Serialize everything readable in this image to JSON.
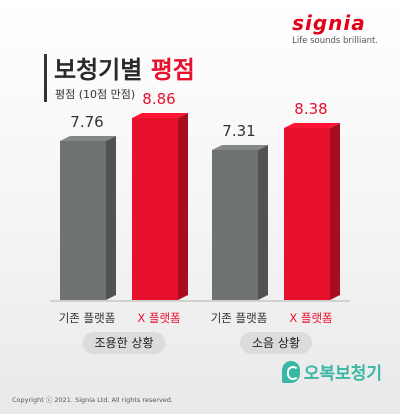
{
  "brand": {
    "logo_text": "signia",
    "tagline": "Life sounds brilliant."
  },
  "header": {
    "title_main": "보청기별 ",
    "title_accent": "평점",
    "subtitle": "평점 (10점 만점)"
  },
  "colors": {
    "gray_bar": "#6f7273",
    "red_bar": "#e8112d",
    "accent": "#e8112d",
    "watermark": "#39b7a5"
  },
  "chart_data": {
    "type": "bar",
    "title": "보청기별 평점",
    "subtitle": "평점 (10점 만점)",
    "ylim": [
      0,
      10
    ],
    "groups": [
      "조용한 상황",
      "소음 상황"
    ],
    "series": [
      {
        "name": "기존 플랫폼",
        "values": [
          7.76,
          7.31
        ],
        "color": "#6f7273"
      },
      {
        "name": "X 플랫폼",
        "values": [
          8.86,
          8.38
        ],
        "color": "#e8112d"
      }
    ],
    "value_labels": [
      [
        "7.76",
        "8.86"
      ],
      [
        "7.31",
        "8.38"
      ]
    ],
    "legend": "none"
  },
  "footer": {
    "copyright": "Copyright ⓒ 2021. Signia Ltd. All rights reserved."
  },
  "watermark": {
    "text": "오복보청기",
    "icon": "ear-icon"
  }
}
